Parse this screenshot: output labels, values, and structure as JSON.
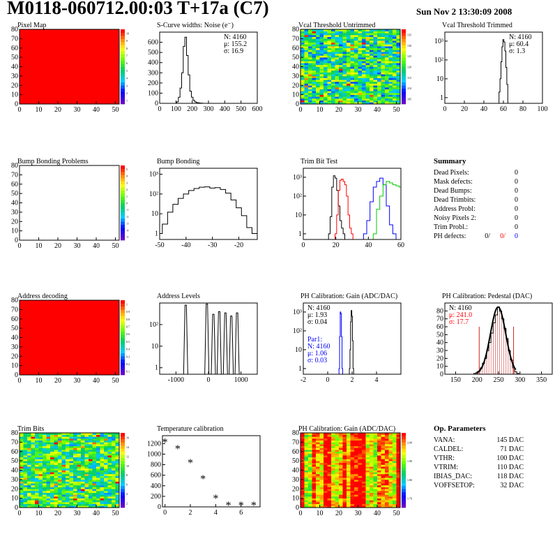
{
  "header": {
    "title": "M0118-060712.00:03 T+17a (C7)",
    "datetime": "Sun Nov  2 13:30:09 2008"
  },
  "colors": {
    "red": "#ff0000",
    "blue": "#0000ff",
    "green": "#00cc00",
    "black": "#000000",
    "pedestal_fill": "#cc2222"
  },
  "chart_data": [
    {
      "id": "pixel_map",
      "type": "heatmap",
      "title": "Pixel Map",
      "xticks": [
        "0",
        "10",
        "20",
        "30",
        "40",
        "50"
      ],
      "yticks": [
        "0",
        "10",
        "20",
        "30",
        "40",
        "50",
        "60",
        "70",
        "80"
      ],
      "xlim": [
        0,
        52
      ],
      "ylim": [
        0,
        80
      ],
      "fill": "uniform",
      "zticks": [
        "1",
        "2",
        "3",
        "4",
        "5",
        "6",
        "7",
        "8",
        "9",
        "10"
      ]
    },
    {
      "id": "scurve_noise",
      "type": "line",
      "title": "S-Curve widths: Noise (e⁻)",
      "stats": [
        "N: 4160",
        "μ: 155.2",
        "σ: 16.9"
      ],
      "xticks": [
        "0",
        "100",
        "200",
        "300",
        "400",
        "500",
        "600"
      ],
      "yticks": [
        "0",
        "100",
        "200",
        "300",
        "400",
        "500",
        "600"
      ],
      "xlim": [
        0,
        600
      ],
      "ylim": [
        0,
        700
      ],
      "x": [
        100,
        110,
        120,
        130,
        140,
        150,
        160,
        170,
        180,
        190,
        200,
        210,
        220,
        230,
        240,
        250,
        260,
        270
      ],
      "values": [
        0,
        15,
        60,
        150,
        300,
        560,
        650,
        470,
        280,
        120,
        60,
        30,
        15,
        8,
        5,
        3,
        2,
        0
      ]
    },
    {
      "id": "vcal_untrimmed",
      "type": "heatmap",
      "title": "Vcal Threshold Untrimmed",
      "xticks": [
        "0",
        "10",
        "20",
        "30",
        "40",
        "50"
      ],
      "yticks": [
        "0",
        "10",
        "20",
        "30",
        "40",
        "50",
        "60",
        "70",
        "80"
      ],
      "xlim": [
        0,
        52
      ],
      "ylim": [
        0,
        80
      ],
      "fill": "random",
      "zticks": [
        "105",
        "110",
        "115",
        "120",
        "125",
        "130",
        "135"
      ]
    },
    {
      "id": "vcal_trimmed",
      "type": "line",
      "title": "Vcal Threshold Trimmed",
      "stats": [
        "N: 4160",
        "μ: 60.4",
        "σ:  1.3"
      ],
      "log": true,
      "xticks": [
        "0",
        "20",
        "40",
        "60",
        "80",
        "100"
      ],
      "yticks": [
        "1",
        "10",
        "10²",
        "10³"
      ],
      "xlim": [
        0,
        100
      ],
      "ylim": [
        0.5,
        3000
      ],
      "x": [
        56,
        57,
        58,
        59,
        60,
        61,
        62,
        63,
        64,
        65
      ],
      "values": [
        2,
        10,
        80,
        500,
        1200,
        900,
        300,
        40,
        5,
        0
      ]
    },
    {
      "id": "bump_problems",
      "type": "heatmap",
      "title": "Bump Bonding Problems",
      "xticks": [
        "0",
        "10",
        "20",
        "30",
        "40",
        "50"
      ],
      "yticks": [
        "0",
        "10",
        "20",
        "30",
        "40",
        "50",
        "60",
        "70",
        "80"
      ],
      "xlim": [
        0,
        52
      ],
      "ylim": [
        0,
        80
      ],
      "fill": "empty",
      "zticks": [
        "-5",
        "-4",
        "-3",
        "-2",
        "-1",
        "0",
        "1",
        "2",
        "3",
        "4",
        "5"
      ]
    },
    {
      "id": "bump_bonding",
      "type": "line",
      "title": "Bump Bonding",
      "log": true,
      "xticks": [
        "-50",
        "-40",
        "-30",
        "-20"
      ],
      "yticks": [
        "1",
        "10",
        "10²",
        "10³"
      ],
      "xlim": [
        -50,
        -13
      ],
      "ylim": [
        0.5,
        2000
      ],
      "x": [
        -50,
        -48,
        -46,
        -44,
        -42,
        -40,
        -38,
        -36,
        -34,
        -32,
        -30,
        -28,
        -26,
        -24,
        -22,
        -20,
        -18,
        -16,
        -14
      ],
      "values": [
        1,
        3,
        12,
        30,
        60,
        100,
        150,
        190,
        220,
        230,
        200,
        210,
        170,
        110,
        50,
        20,
        8,
        2,
        1
      ]
    },
    {
      "id": "trim_bit_test",
      "type": "line",
      "title": "Trim Bit Test",
      "log": true,
      "xticks": [
        "0",
        "20",
        "40",
        "60"
      ],
      "yticks": [
        "1",
        "10",
        "10²",
        "10³"
      ],
      "xlim": [
        0,
        60
      ],
      "ylim": [
        0.5,
        3000
      ],
      "series": [
        {
          "color": "#000000",
          "x": [
            16,
            17,
            18,
            19,
            20,
            21,
            22,
            23,
            24,
            25
          ],
          "values": [
            1,
            8,
            300,
            1200,
            900,
            200,
            30,
            5,
            2,
            1
          ]
        },
        {
          "color": "#ff0000",
          "x": [
            20,
            21,
            22,
            23,
            24,
            25,
            26,
            27,
            28,
            29,
            30
          ],
          "values": [
            1,
            10,
            200,
            700,
            800,
            600,
            400,
            100,
            10,
            2,
            1
          ]
        },
        {
          "color": "#0000ff",
          "x": [
            38,
            40,
            42,
            44,
            46,
            48,
            50,
            52,
            54,
            56
          ],
          "values": [
            1,
            5,
            50,
            300,
            600,
            900,
            400,
            30,
            3,
            1
          ]
        },
        {
          "color": "#00cc00",
          "x": [
            44,
            46,
            48,
            50,
            52,
            54,
            56,
            58,
            60
          ],
          "values": [
            1,
            20,
            100,
            400,
            600,
            500,
            400,
            350,
            300
          ]
        }
      ]
    },
    {
      "id": "summary",
      "type": "table",
      "title": "Summary",
      "rows": [
        [
          "Dead Pixels:",
          "0"
        ],
        [
          "Mask defects:",
          "0"
        ],
        [
          "Dead Bumps:",
          "0"
        ],
        [
          "Dead Trimbits:",
          "0"
        ],
        [
          "Address Probl:",
          "0"
        ],
        [
          "Noisy Pixels 2:",
          "0"
        ],
        [
          "Trim Probl.:",
          "0"
        ]
      ],
      "ph_label": "PH defects:",
      "ph_values": [
        "0/",
        "0/",
        "0"
      ]
    },
    {
      "id": "address_decoding",
      "type": "heatmap",
      "title": "Address decoding",
      "xticks": [
        "0",
        "10",
        "20",
        "30",
        "40",
        "50"
      ],
      "yticks": [
        "0",
        "10",
        "20",
        "30",
        "40",
        "50",
        "60",
        "70",
        "80"
      ],
      "xlim": [
        0,
        52
      ],
      "ylim": [
        0,
        80
      ],
      "fill": "uniform",
      "zticks": [
        "0.1",
        "0.2",
        "0.3",
        "0.4",
        "0.5",
        "0.6",
        "0.7",
        "0.8",
        "0.9",
        "1"
      ]
    },
    {
      "id": "address_levels",
      "type": "line",
      "title": "Address Levels",
      "log": true,
      "xticks": [
        "-1000",
        "0",
        "1000"
      ],
      "yticks": [
        "1",
        "10",
        "10²"
      ],
      "xlim": [
        -1500,
        1500
      ],
      "ylim": [
        0.5,
        1000
      ],
      "peaks": [
        {
          "x": -700,
          "v": 800
        },
        {
          "x": -50,
          "v": 900
        },
        {
          "x": 150,
          "v": 300
        },
        {
          "x": 330,
          "v": 400
        },
        {
          "x": 520,
          "v": 350
        },
        {
          "x": 700,
          "v": 250
        },
        {
          "x": 880,
          "v": 350
        }
      ]
    },
    {
      "id": "ph_gain",
      "type": "line",
      "title": "PH Calibration: Gain (ADC/DAC)",
      "log": true,
      "xticks": [
        "-2",
        "0",
        "2",
        "4"
      ],
      "yticks": [
        "1",
        "10",
        "10²",
        "10³"
      ],
      "xlim": [
        -2,
        6
      ],
      "ylim": [
        0.5,
        3000
      ],
      "stats": [
        "N: 4160",
        "μ: 1.93",
        "σ: 0.04"
      ],
      "stats2": [
        "Par1:",
        "N: 4160",
        "μ: 1.06",
        "σ: 0.03"
      ],
      "series": [
        {
          "color": "#000000",
          "x": [
            1.8,
            1.85,
            1.9,
            1.95,
            2.0,
            2.05,
            2.1
          ],
          "values": [
            1,
            10,
            300,
            1200,
            600,
            30,
            1
          ]
        },
        {
          "color": "#0000ff",
          "x": [
            0.95,
            1.0,
            1.05,
            1.1,
            1.15,
            1.2
          ],
          "values": [
            1,
            50,
            1000,
            800,
            50,
            1
          ]
        }
      ]
    },
    {
      "id": "ph_pedestal",
      "type": "bar",
      "title": "PH Calibration: Pedestal (DAC)",
      "stats": [
        "N: 4160",
        "μ: 241.0",
        "σ: 17.7"
      ],
      "xticks": [
        "150",
        "200",
        "250",
        "300",
        "350"
      ],
      "yticks": [
        "0",
        "10",
        "20",
        "30",
        "40",
        "50",
        "60",
        "70",
        "80"
      ],
      "xlim": [
        125,
        375
      ],
      "ylim": [
        0,
        90
      ],
      "x": [
        195,
        200,
        205,
        210,
        215,
        220,
        225,
        230,
        235,
        240,
        245,
        250,
        255,
        260,
        265,
        270,
        275,
        280,
        285,
        290,
        295
      ],
      "values": [
        1,
        2,
        4,
        8,
        14,
        20,
        30,
        40,
        52,
        65,
        75,
        85,
        80,
        70,
        58,
        45,
        30,
        18,
        8,
        3,
        1
      ]
    },
    {
      "id": "trim_bits",
      "type": "heatmap",
      "title": "Trim Bits",
      "xticks": [
        "0",
        "10",
        "20",
        "30",
        "40",
        "50"
      ],
      "yticks": [
        "0",
        "10",
        "20",
        "30",
        "40",
        "50",
        "60",
        "70",
        "80"
      ],
      "xlim": [
        0,
        52
      ],
      "ylim": [
        0,
        80
      ],
      "fill": "random",
      "zticks": [
        "2",
        "4",
        "6",
        "8",
        "10",
        "12",
        "14",
        "16"
      ]
    },
    {
      "id": "temperature",
      "type": "scatter",
      "title": "Temperature calibration",
      "xticks": [
        "0",
        "2",
        "4",
        "6"
      ],
      "yticks": [
        "0",
        "200",
        "400",
        "600",
        "800",
        "1000",
        "1200"
      ],
      "xlim": [
        -0.2,
        7.5
      ],
      "ylim": [
        0,
        1350
      ],
      "x": [
        0,
        1,
        2,
        3,
        4,
        5,
        6,
        7
      ],
      "values": [
        1240,
        1110,
        850,
        540,
        170,
        40,
        40,
        40
      ]
    },
    {
      "id": "ph_gain_map",
      "type": "heatmap",
      "title": "PH Calibration: Gain (ADC/DAC)",
      "xticks": [
        "0",
        "10",
        "20",
        "30",
        "40",
        "50"
      ],
      "yticks": [
        "0",
        "10",
        "20",
        "30",
        "40",
        "50",
        "60",
        "70",
        "80"
      ],
      "xlim": [
        0,
        52
      ],
      "ylim": [
        0,
        80
      ],
      "fill": "columns",
      "zticks": [
        "1.70",
        "1.80",
        "1.90",
        "2.00"
      ]
    },
    {
      "id": "op_params",
      "type": "table",
      "title": "Op. Parameters",
      "rows": [
        [
          "VANA:",
          "145 DAC"
        ],
        [
          "CALDEL:",
          "71 DAC"
        ],
        [
          "VTHR:",
          "100 DAC"
        ],
        [
          "VTRIM:",
          "110 DAC"
        ],
        [
          "IBIAS_DAC:",
          "118 DAC"
        ],
        [
          "VOFFSETOP:",
          "32 DAC"
        ]
      ]
    }
  ]
}
